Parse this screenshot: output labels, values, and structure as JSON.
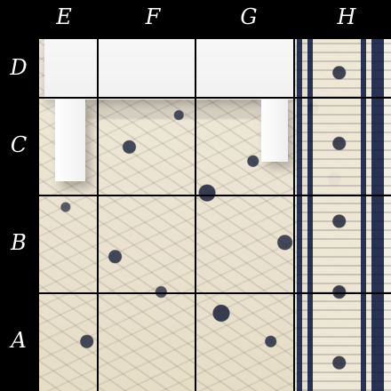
{
  "board": {
    "columns": [
      {
        "label": "E"
      },
      {
        "label": "F"
      },
      {
        "label": "G"
      },
      {
        "label": "H"
      }
    ],
    "rows": [
      {
        "label": "D"
      },
      {
        "label": "C"
      },
      {
        "label": "B"
      },
      {
        "label": "A"
      }
    ]
  },
  "photo": {
    "semantic": "patterned-carpet-with-white-table"
  },
  "colors": {
    "background": "#000000",
    "grid_line": "#000000",
    "label": "#ffffff",
    "carpet_base": "#e9e3d2",
    "carpet_motif": "#1e2a4e",
    "table": "#f4f4f4"
  }
}
